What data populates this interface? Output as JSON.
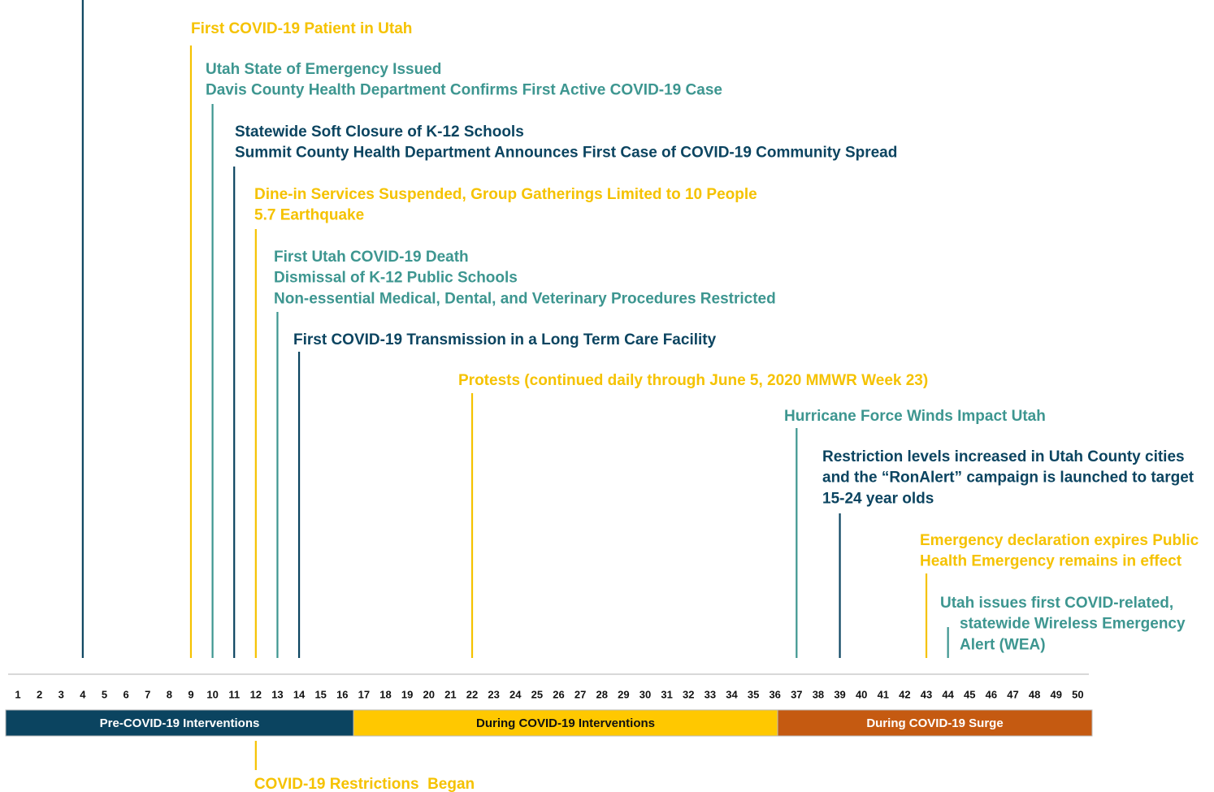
{
  "timeline": {
    "events": [
      {
        "week": 4,
        "color": "#0b4460",
        "lines": []
      },
      {
        "week": 9,
        "color": "#f5c200",
        "lines": [
          "First COVID-19 Patient in Utah"
        ]
      },
      {
        "week": 10,
        "color": "#3d9690",
        "lines": [
          "Utah State of Emergency Issued",
          "Davis County Health Department Confirms First Active COVID-19 Case"
        ]
      },
      {
        "week": 11,
        "color": "#0b4460",
        "lines": [
          "Statewide Soft Closure of K-12 Schools",
          "Summit County Health Department Announces First Case of COVID-19 Community Spread"
        ]
      },
      {
        "week": 12,
        "color": "#f5c200",
        "lines": [
          "Dine-in Services Suspended, Group Gatherings Limited to 10 People",
          "5.7 Earthquake"
        ]
      },
      {
        "week": 13,
        "color": "#3d9690",
        "lines": [
          "First Utah COVID-19 Death",
          "Dismissal of K-12 Public Schools",
          "Non-essential Medical, Dental, and Veterinary Procedures Restricted"
        ]
      },
      {
        "week": 14,
        "color": "#0b4460",
        "lines": [
          "First COVID-19 Transmission in a Long Term Care Facility"
        ]
      },
      {
        "week": 22,
        "color": "#f5c200",
        "lines": [
          "Protests (continued daily through June 5, 2020 MMWR Week 23)"
        ]
      },
      {
        "week": 37,
        "color": "#3d9690",
        "lines": [
          "Hurricane Force Winds Impact Utah"
        ]
      },
      {
        "week": 39,
        "color": "#0b4460",
        "lines": [
          "Restriction levels increased in Utah County cities",
          "and the “RonAlert” campaign is launched to target",
          "15-24 year olds"
        ]
      },
      {
        "week": 43,
        "color": "#f5c200",
        "lines": [
          "Emergency declaration expires Public",
          "Health Emergency remains in effect"
        ]
      },
      {
        "week": 44,
        "color": "#3d9690",
        "lines": [
          "Utah issues first COVID-related,",
          "statewide Wireless Emergency",
          "Alert (WEA)"
        ]
      }
    ],
    "weeks": [
      1,
      2,
      3,
      4,
      5,
      6,
      7,
      8,
      9,
      10,
      11,
      12,
      13,
      14,
      15,
      16,
      17,
      18,
      19,
      20,
      21,
      22,
      23,
      24,
      25,
      26,
      27,
      28,
      29,
      30,
      31,
      32,
      33,
      34,
      35,
      36,
      37,
      38,
      39,
      40,
      41,
      42,
      43,
      44,
      45,
      46,
      47,
      48,
      49,
      50
    ],
    "phases": [
      {
        "label": "Pre-COVID-19 Interventions",
        "color": "#0b4460",
        "text_color": "#ffffff"
      },
      {
        "label": "During COVID-19 Interventions",
        "color": "#ffc800",
        "text_color": "#111111"
      },
      {
        "label": "During COVID-19 Surge",
        "color": "#c55a11",
        "text_color": "#ffffff"
      }
    ],
    "bottom_event": {
      "week": 12,
      "color": "#f5c200",
      "label": "COVID-19 Restrictions  Began"
    }
  }
}
